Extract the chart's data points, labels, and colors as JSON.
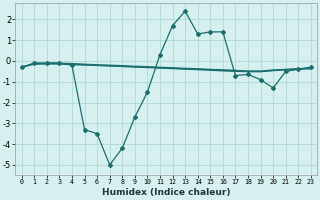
{
  "title": "",
  "xlabel": "Humidex (Indice chaleur)",
  "background_color": "#d6f0f0",
  "grid_color": "#b0d8d8",
  "line_color": "#1a6e6e",
  "xlim": [
    -0.5,
    23.5
  ],
  "ylim": [
    -5.5,
    2.8
  ],
  "yticks": [
    -5,
    -4,
    -3,
    -2,
    -1,
    0,
    1,
    2
  ],
  "xticks": [
    0,
    1,
    2,
    3,
    4,
    5,
    6,
    7,
    8,
    9,
    10,
    11,
    12,
    13,
    14,
    15,
    16,
    17,
    18,
    19,
    20,
    21,
    22,
    23
  ],
  "series_main_x": [
    0,
    1,
    2,
    3,
    4,
    5,
    6,
    7,
    8,
    9,
    10,
    11,
    12,
    13,
    14,
    15,
    16,
    17,
    18,
    19,
    20,
    21,
    22,
    23
  ],
  "series_main_y": [
    -0.3,
    -0.1,
    -0.1,
    -0.1,
    -0.2,
    -3.3,
    -3.5,
    -5.0,
    -4.2,
    -2.7,
    -1.5,
    0.3,
    1.7,
    2.4,
    1.3,
    1.4,
    1.4,
    -0.7,
    -0.65,
    -0.9,
    -1.3,
    -0.5,
    -0.4,
    -0.3
  ],
  "series_flat1_x": [
    0,
    1,
    2,
    3,
    4,
    5,
    6,
    7,
    8,
    9,
    10,
    11,
    12,
    13,
    14,
    15,
    16,
    17,
    18,
    19,
    20,
    21,
    22,
    23
  ],
  "series_flat1_y": [
    -0.3,
    -0.15,
    -0.15,
    -0.15,
    -0.18,
    -0.2,
    -0.22,
    -0.25,
    -0.27,
    -0.3,
    -0.32,
    -0.35,
    -0.37,
    -0.4,
    -0.42,
    -0.45,
    -0.48,
    -0.5,
    -0.52,
    -0.52,
    -0.47,
    -0.43,
    -0.4,
    -0.38
  ],
  "series_flat2_x": [
    0,
    1,
    2,
    3,
    4,
    5,
    6,
    7,
    8,
    9,
    10,
    11,
    12,
    13,
    14,
    15,
    16,
    17,
    18,
    19,
    20,
    21,
    22,
    23
  ],
  "series_flat2_y": [
    -0.3,
    -0.15,
    -0.12,
    -0.12,
    -0.15,
    -0.18,
    -0.2,
    -0.22,
    -0.25,
    -0.28,
    -0.3,
    -0.32,
    -0.35,
    -0.38,
    -0.4,
    -0.42,
    -0.45,
    -0.47,
    -0.5,
    -0.5,
    -0.45,
    -0.42,
    -0.38,
    -0.35
  ],
  "series_flat3_x": [
    0,
    1,
    2,
    3,
    4,
    5,
    6,
    7,
    8,
    9,
    10,
    11,
    12,
    13,
    14,
    15,
    16,
    17,
    18,
    19,
    20,
    21,
    22,
    23
  ],
  "series_flat3_y": [
    -0.3,
    -0.12,
    -0.1,
    -0.1,
    -0.12,
    -0.15,
    -0.18,
    -0.2,
    -0.22,
    -0.25,
    -0.27,
    -0.3,
    -0.32,
    -0.35,
    -0.37,
    -0.4,
    -0.42,
    -0.45,
    -0.48,
    -0.48,
    -0.43,
    -0.4,
    -0.37,
    -0.33
  ]
}
